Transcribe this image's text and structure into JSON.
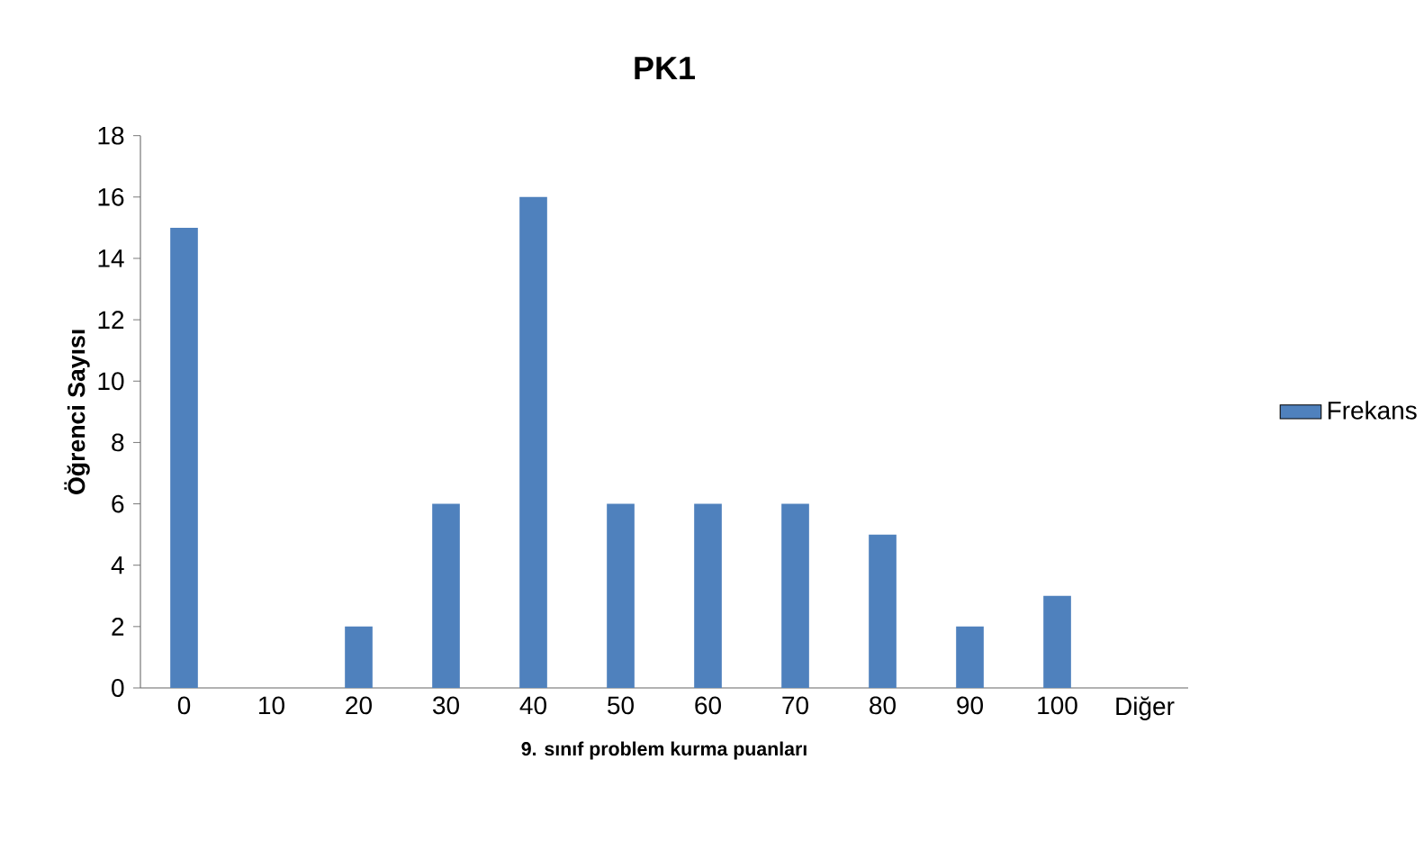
{
  "chart_data": {
    "type": "bar",
    "title": "PK1",
    "xlabel": "9. sınıf problem kurma puanları",
    "ylabel": "Öğrenci Sayısı",
    "categories": [
      "0",
      "10",
      "20",
      "30",
      "40",
      "50",
      "60",
      "70",
      "80",
      "90",
      "100",
      "Diğer"
    ],
    "series": [
      {
        "name": "Frekans",
        "color": "#4f81bd",
        "values": [
          15,
          0,
          2,
          6,
          16,
          6,
          6,
          6,
          5,
          2,
          3,
          0
        ]
      }
    ],
    "ylim": [
      0,
      18
    ],
    "yticks": [
      0,
      2,
      4,
      6,
      8,
      10,
      12,
      14,
      16,
      18
    ],
    "legend": "right"
  }
}
